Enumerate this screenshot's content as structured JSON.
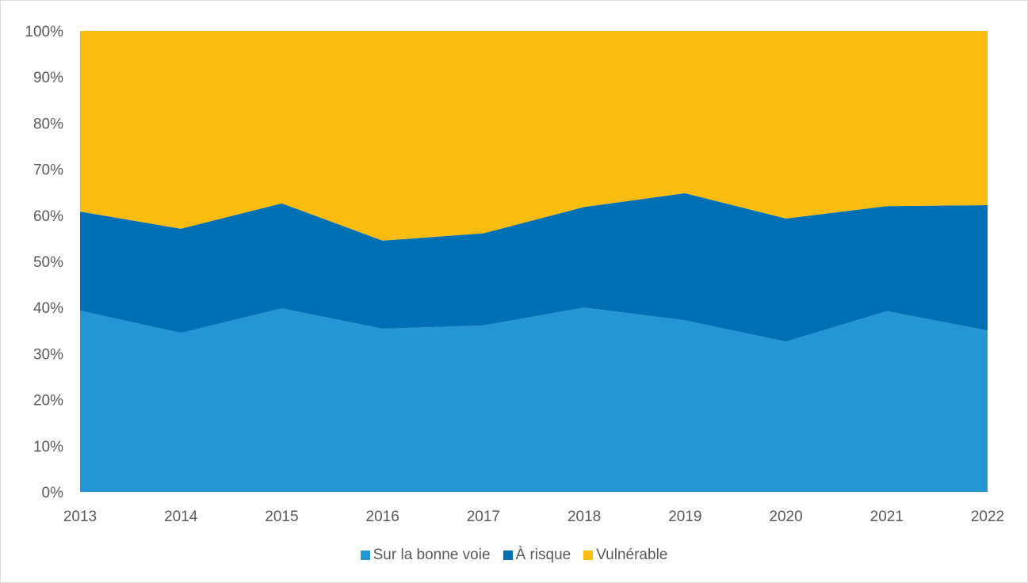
{
  "chart_data": {
    "type": "area",
    "stacked": "percent",
    "categories": [
      "2013",
      "2014",
      "2015",
      "2016",
      "2017",
      "2018",
      "2019",
      "2020",
      "2021",
      "2022"
    ],
    "series": [
      {
        "name": "Sur la bonne voie",
        "color": "#2596d4",
        "values": [
          39.3,
          34.5,
          39.8,
          35.4,
          36.1,
          40.0,
          37.2,
          32.6,
          39.2,
          35.0
        ]
      },
      {
        "name": "À risque",
        "color": "#0070b5",
        "values": [
          21.5,
          22.6,
          22.8,
          19.1,
          20.0,
          21.8,
          27.6,
          26.7,
          22.8,
          27.2
        ]
      },
      {
        "name": "Vulnérable",
        "color": "#fbbc10",
        "values": [
          39.2,
          42.9,
          37.4,
          45.5,
          43.9,
          38.2,
          35.2,
          40.7,
          38.0,
          37.8
        ]
      }
    ],
    "y_ticks": [
      "0%",
      "10%",
      "20%",
      "30%",
      "40%",
      "50%",
      "60%",
      "70%",
      "80%",
      "90%",
      "100%"
    ],
    "ylim": [
      0,
      100
    ],
    "grid": false,
    "legend_position": "bottom",
    "title": "",
    "xlabel": "",
    "ylabel": ""
  }
}
